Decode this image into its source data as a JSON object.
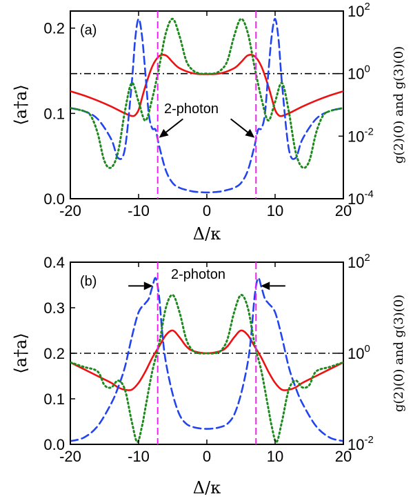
{
  "colors": {
    "mean_photon": "#ee1111",
    "g2": "#2244ee",
    "g3": "#1e8a1e",
    "marker": "#ee22ee",
    "reference": "#000000"
  },
  "chart_data": [
    {
      "type": "line",
      "panel_label": "(a)",
      "annotation": "2-photon",
      "xlabel": "Δ/κ",
      "ylabel_left": "⟨a†a⟩",
      "ylabel_right": "g(2)(0) and g(3)(0)",
      "xlim": [
        -20,
        20
      ],
      "ylim_left": [
        0.0,
        0.22
      ],
      "ylim_right_log10": [
        -4,
        2
      ],
      "y_right_scale": "log",
      "x_ticks": [
        "-20",
        "-10",
        "0",
        "10",
        "20"
      ],
      "y_left_ticks": [
        "0.0",
        "0.1",
        "0.2"
      ],
      "y_right_ticks": [
        {
          "base": "10",
          "exp": "-4"
        },
        {
          "base": "10",
          "exp": "-2"
        },
        {
          "base": "10",
          "exp": "0"
        },
        {
          "base": "10",
          "exp": "2"
        }
      ],
      "vlines": [
        -7.2,
        7.2
      ],
      "hline_right": 1.0,
      "arrows": [
        {
          "from": [
            -3.5,
            -1.45
          ],
          "to": [
            -7.0,
            -2.05
          ]
        },
        {
          "from": [
            3.5,
            -1.45
          ],
          "to": [
            7.0,
            -2.05
          ]
        }
      ],
      "series": [
        {
          "key": "mean",
          "axis": "left",
          "style": "solid",
          "x": [
            -20,
            -18,
            -16,
            -14,
            -12,
            -11,
            -10.5,
            -10,
            -9.5,
            -9,
            -8,
            -7,
            -6,
            -5,
            -4,
            -2,
            0
          ],
          "y": [
            0.126,
            0.121,
            0.115,
            0.108,
            0.1,
            0.097,
            0.098,
            0.104,
            0.118,
            0.132,
            0.155,
            0.167,
            0.168,
            0.16,
            0.153,
            0.147,
            0.146
          ]
        },
        {
          "key": "g2",
          "axis": "right",
          "style": "dashed",
          "x": [
            -20,
            -18,
            -16,
            -14,
            -13,
            -12,
            -11,
            -10.5,
            -10,
            -9.5,
            -9,
            -8.5,
            -8,
            -7.5,
            -7,
            -6,
            -5,
            -4,
            -3,
            -2,
            -1,
            0
          ],
          "y": [
            -1.1,
            -1.2,
            -1.45,
            -2.1,
            -2.7,
            -2.4,
            -0.3,
            1.1,
            1.75,
            1.2,
            0.0,
            -1.3,
            -1.75,
            -1.8,
            -2.3,
            -3.1,
            -3.5,
            -3.65,
            -3.72,
            -3.77,
            -3.79,
            -3.8
          ]
        },
        {
          "key": "g3",
          "axis": "right",
          "style": "dotted",
          "x": [
            -20,
            -18,
            -17,
            -16,
            -15,
            -14,
            -13,
            -12,
            -11,
            -10,
            -9,
            -8,
            -7,
            -6,
            -5,
            -4,
            -3,
            -2,
            -1,
            0
          ],
          "y": [
            -1.1,
            -1.2,
            -1.35,
            -1.9,
            -2.8,
            -3.0,
            -2.5,
            -1.2,
            -0.3,
            -0.9,
            -1.5,
            -0.8,
            0.2,
            1.3,
            1.75,
            1.2,
            0.4,
            0.1,
            0.0,
            0.0
          ]
        }
      ]
    },
    {
      "type": "line",
      "panel_label": "(b)",
      "annotation": "2-photon",
      "xlabel": "Δ/κ",
      "ylabel_left": "⟨a†a⟩",
      "ylabel_right": "g(2)(0) and g(3)(0)",
      "xlim": [
        -20,
        20
      ],
      "ylim_left": [
        0.0,
        0.4
      ],
      "ylim_right_log10": [
        -2,
        2
      ],
      "y_right_scale": "log",
      "x_ticks": [
        "-20",
        "-10",
        "0",
        "10",
        "20"
      ],
      "y_left_ticks": [
        "0.0",
        "0.1",
        "0.2",
        "0.3",
        "0.4"
      ],
      "y_right_ticks": [
        {
          "base": "10",
          "exp": "-2"
        },
        {
          "base": "10",
          "exp": "0"
        },
        {
          "base": "10",
          "exp": "2"
        }
      ],
      "vlines": [
        -7.2,
        7.2
      ],
      "hline_right": 1.0,
      "arrows": [
        {
          "from": [
            -11.5,
            1.48
          ],
          "to": [
            -7.9,
            1.48
          ]
        },
        {
          "from": [
            11.5,
            1.48
          ],
          "to": [
            7.9,
            1.48
          ]
        }
      ],
      "series": [
        {
          "key": "mean",
          "axis": "left",
          "style": "solid",
          "x": [
            -20,
            -18,
            -16,
            -14,
            -13,
            -12,
            -11,
            -10,
            -9,
            -8,
            -7,
            -6,
            -5,
            -4,
            -3,
            -2,
            0
          ],
          "y": [
            0.18,
            0.165,
            0.15,
            0.135,
            0.125,
            0.12,
            0.12,
            0.135,
            0.16,
            0.19,
            0.215,
            0.24,
            0.25,
            0.235,
            0.215,
            0.205,
            0.2
          ]
        },
        {
          "key": "g2",
          "axis": "right",
          "style": "dashed",
          "x": [
            -20,
            -18,
            -16,
            -14,
            -13,
            -12,
            -11,
            -10,
            -9,
            -8.5,
            -8,
            -7.5,
            -7,
            -6.5,
            -6,
            -5,
            -4,
            -3,
            -2,
            -1,
            0
          ],
          "y": [
            -1.93,
            -1.85,
            -1.6,
            -1.1,
            -0.75,
            -0.3,
            0.35,
            0.9,
            1.1,
            1.2,
            1.45,
            1.65,
            1.25,
            0.4,
            -0.2,
            -0.9,
            -1.35,
            -1.55,
            -1.62,
            -1.65,
            -1.66
          ]
        },
        {
          "key": "g3",
          "axis": "right",
          "style": "dotted",
          "x": [
            -20,
            -18,
            -16,
            -15,
            -14,
            -13,
            -12,
            -11,
            -10.2,
            -9.5,
            -9,
            -8,
            -7,
            -6,
            -5,
            -4,
            -3,
            -2,
            -1,
            0
          ],
          "y": [
            -0.2,
            -0.3,
            -0.4,
            -0.7,
            -0.75,
            -0.6,
            -0.8,
            -1.5,
            -1.95,
            -1.6,
            -1.2,
            -0.4,
            0.2,
            1.0,
            1.28,
            0.9,
            0.3,
            0.05,
            0.0,
            0.0
          ]
        }
      ]
    }
  ]
}
